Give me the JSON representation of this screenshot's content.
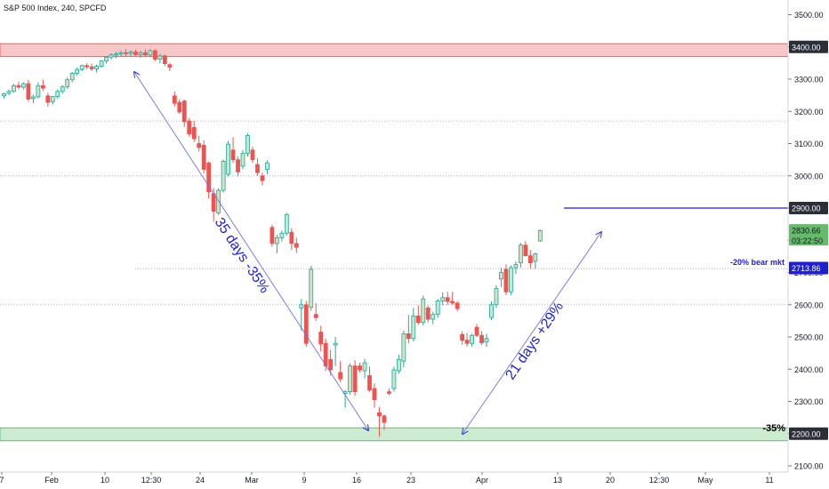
{
  "title": "S&P 500 Index, 240, SPCFD",
  "colors": {
    "up": "#26a69a",
    "up_fill": "#c8e6c9",
    "down": "#ef5350",
    "down_fill": "#ef5350",
    "blue": "#1e1ed2",
    "resistance_fill": "#f8c8c8",
    "resistance_edge": "#e06666",
    "support_fill": "#cdebd0",
    "support_edge": "#66bb6a",
    "grid": "#d1d4dc"
  },
  "chart_data": {
    "type": "candlestick",
    "y_axis": {
      "range": [
        2080,
        3560
      ],
      "ticks": [
        2100,
        2200,
        2300,
        2400,
        2500,
        2600,
        2700,
        2800,
        2900,
        3000,
        3100,
        3200,
        3300,
        3400,
        3500
      ],
      "tick_labels": [
        "2100.00",
        "2200.00",
        "2300.00",
        "2400.00",
        "2500.00",
        "2600.00",
        "2700.00",
        "2800.00",
        "2900.00",
        "3000.00",
        "3100.00",
        "3200.00",
        "3300.00",
        "3400.00",
        "3500.00"
      ],
      "side": "right"
    },
    "x_axis": {
      "tick_labels": [
        "7",
        "Feb",
        "10",
        "12:30",
        "24",
        "Mar",
        "9",
        "16",
        "23",
        "Apr",
        "13",
        "20",
        "12:30",
        "May",
        "11"
      ]
    },
    "dotted_levels": [
      3170,
      3000,
      2712,
      2600
    ],
    "zones": [
      {
        "name": "resistance",
        "from": 3370,
        "to": 3410,
        "label": "3400.00"
      },
      {
        "name": "support",
        "from": 2178,
        "to": 2218,
        "label": "2200.00",
        "note": "-35%"
      }
    ],
    "price_line": {
      "value": 2900,
      "label": "2900.00"
    },
    "last_price": {
      "value": 2830.66,
      "label": "2830.66",
      "countdown": "03:22:50"
    },
    "bear_level": {
      "value": 2713.86,
      "label": "2713.86",
      "note": "-20% bear mkt"
    },
    "annotations": [
      {
        "text": "35 days -35%",
        "from_date": "Feb 19",
        "from_value": 3325,
        "to_date": "Mar 23",
        "to_value": 2215
      },
      {
        "text": "21 days +29%",
        "from_date": "Mar 23",
        "from_value": 2213,
        "to_date": "Apr 17",
        "to_value": 2880
      }
    ],
    "candles": [
      [
        3248,
        3258,
        3240,
        3255
      ],
      [
        3256,
        3268,
        3250,
        3262
      ],
      [
        3262,
        3285,
        3258,
        3280
      ],
      [
        3280,
        3292,
        3270,
        3275
      ],
      [
        3275,
        3290,
        3268,
        3286
      ],
      [
        3286,
        3298,
        3230,
        3238
      ],
      [
        3240,
        3252,
        3225,
        3245
      ],
      [
        3245,
        3290,
        3240,
        3280
      ],
      [
        3280,
        3298,
        3264,
        3272
      ],
      [
        3248,
        3258,
        3215,
        3228
      ],
      [
        3230,
        3248,
        3222,
        3246
      ],
      [
        3246,
        3268,
        3238,
        3262
      ],
      [
        3262,
        3282,
        3255,
        3276
      ],
      [
        3276,
        3305,
        3270,
        3298
      ],
      [
        3298,
        3322,
        3290,
        3318
      ],
      [
        3318,
        3336,
        3310,
        3330
      ],
      [
        3330,
        3345,
        3325,
        3342
      ],
      [
        3342,
        3350,
        3330,
        3338
      ],
      [
        3338,
        3348,
        3325,
        3332
      ],
      [
        3332,
        3345,
        3320,
        3340
      ],
      [
        3340,
        3360,
        3336,
        3356
      ],
      [
        3356,
        3372,
        3348,
        3368
      ],
      [
        3368,
        3380,
        3360,
        3375
      ],
      [
        3375,
        3385,
        3365,
        3378
      ],
      [
        3378,
        3388,
        3370,
        3382
      ],
      [
        3382,
        3393,
        3372,
        3380
      ],
      [
        3380,
        3390,
        3370,
        3384
      ],
      [
        3384,
        3392,
        3372,
        3376
      ],
      [
        3376,
        3388,
        3366,
        3382
      ],
      [
        3382,
        3392,
        3370,
        3375
      ],
      [
        3375,
        3393,
        3368,
        3388
      ],
      [
        3388,
        3393,
        3356,
        3362
      ],
      [
        3362,
        3378,
        3350,
        3372
      ],
      [
        3372,
        3376,
        3340,
        3348
      ],
      [
        3345,
        3350,
        3325,
        3337
      ],
      [
        3248,
        3262,
        3215,
        3225
      ],
      [
        3228,
        3238,
        3192,
        3198
      ],
      [
        3232,
        3236,
        3152,
        3168
      ],
      [
        3170,
        3180,
        3122,
        3130
      ],
      [
        3150,
        3170,
        3105,
        3115
      ],
      [
        3100,
        3124,
        3075,
        3088
      ],
      [
        3095,
        3110,
        3008,
        3020
      ],
      [
        3040,
        3045,
        2930,
        2950
      ],
      [
        2945,
        2962,
        2858,
        2890
      ],
      [
        2885,
        2962,
        2878,
        2955
      ],
      [
        2955,
        3050,
        2948,
        3045
      ],
      [
        3005,
        3108,
        2998,
        3098
      ],
      [
        3080,
        3120,
        3040,
        3050
      ],
      [
        3050,
        3060,
        2998,
        3012
      ],
      [
        3030,
        3080,
        3020,
        3070
      ],
      [
        3070,
        3132,
        3060,
        3125
      ],
      [
        3080,
        3090,
        3040,
        3050
      ],
      [
        3035,
        3055,
        3000,
        3010
      ],
      [
        3000,
        3010,
        2970,
        2985
      ],
      [
        3020,
        3048,
        3005,
        3040
      ],
      [
        2840,
        2848,
        2780,
        2790
      ],
      [
        2790,
        2818,
        2760,
        2808
      ],
      [
        2808,
        2830,
        2796,
        2822
      ],
      [
        2822,
        2885,
        2815,
        2880
      ],
      [
        2825,
        2838,
        2770,
        2790
      ],
      [
        2790,
        2808,
        2760,
        2778
      ],
      [
        2590,
        2618,
        2520,
        2600
      ],
      [
        2600,
        2612,
        2470,
        2480
      ],
      [
        2592,
        2720,
        2582,
        2710
      ],
      [
        2570,
        2605,
        2550,
        2560
      ],
      [
        2515,
        2535,
        2455,
        2478
      ],
      [
        2480,
        2495,
        2395,
        2410
      ],
      [
        2430,
        2460,
        2380,
        2398
      ],
      [
        2475,
        2500,
        2410,
        2480
      ],
      [
        2390,
        2425,
        2360,
        2370
      ],
      [
        2325,
        2335,
        2280,
        2330
      ],
      [
        2330,
        2418,
        2320,
        2410
      ],
      [
        2410,
        2428,
        2318,
        2330
      ],
      [
        2410,
        2420,
        2390,
        2398
      ],
      [
        2395,
        2432,
        2372,
        2420
      ],
      [
        2380,
        2408,
        2330,
        2335
      ],
      [
        2340,
        2356,
        2280,
        2305
      ],
      [
        2265,
        2282,
        2190,
        2255
      ],
      [
        2255,
        2260,
        2212,
        2235
      ],
      [
        2330,
        2340,
        2320,
        2325
      ],
      [
        2340,
        2408,
        2330,
        2398
      ],
      [
        2395,
        2445,
        2386,
        2430
      ],
      [
        2425,
        2520,
        2405,
        2510
      ],
      [
        2510,
        2568,
        2480,
        2495
      ],
      [
        2495,
        2590,
        2486,
        2565
      ],
      [
        2565,
        2598,
        2538,
        2545
      ],
      [
        2545,
        2628,
        2536,
        2618
      ],
      [
        2590,
        2598,
        2545,
        2555
      ],
      [
        2555,
        2578,
        2540,
        2570
      ],
      [
        2570,
        2618,
        2560,
        2612
      ],
      [
        2612,
        2638,
        2598,
        2622
      ],
      [
        2622,
        2640,
        2600,
        2610
      ],
      [
        2610,
        2640,
        2600,
        2605
      ],
      [
        2605,
        2612,
        2580,
        2588
      ],
      [
        2508,
        2518,
        2476,
        2490
      ],
      [
        2490,
        2512,
        2470,
        2480
      ],
      [
        2480,
        2510,
        2470,
        2505
      ],
      [
        2530,
        2540,
        2500,
        2505
      ],
      [
        2505,
        2518,
        2475,
        2482
      ],
      [
        2485,
        2510,
        2470,
        2495
      ],
      [
        2560,
        2610,
        2552,
        2600
      ],
      [
        2600,
        2660,
        2590,
        2650
      ],
      [
        2680,
        2715,
        2655,
        2700
      ],
      [
        2710,
        2725,
        2630,
        2640
      ],
      [
        2640,
        2722,
        2630,
        2715
      ],
      [
        2715,
        2735,
        2695,
        2725
      ],
      [
        2730,
        2792,
        2715,
        2785
      ],
      [
        2785,
        2798,
        2750,
        2752
      ],
      [
        2752,
        2770,
        2712,
        2730
      ],
      [
        2735,
        2762,
        2712,
        2758
      ],
      [
        2798,
        2833,
        2795,
        2830
      ]
    ]
  },
  "axis": {
    "y_labels": [
      "2100.00",
      "2200.00",
      "2300.00",
      "2400.00",
      "2500.00",
      "2600.00",
      "2700.00",
      "2800.00",
      "2900.00",
      "3000.00",
      "3100.00",
      "3200.00",
      "3300.00",
      "3400.00",
      "3500.00"
    ],
    "x_labels": [
      "7",
      "Feb",
      "10",
      "12:30",
      "24",
      "Mar",
      "9",
      "16",
      "23",
      "Apr",
      "13",
      "20",
      "12:30",
      "May",
      "11"
    ]
  }
}
